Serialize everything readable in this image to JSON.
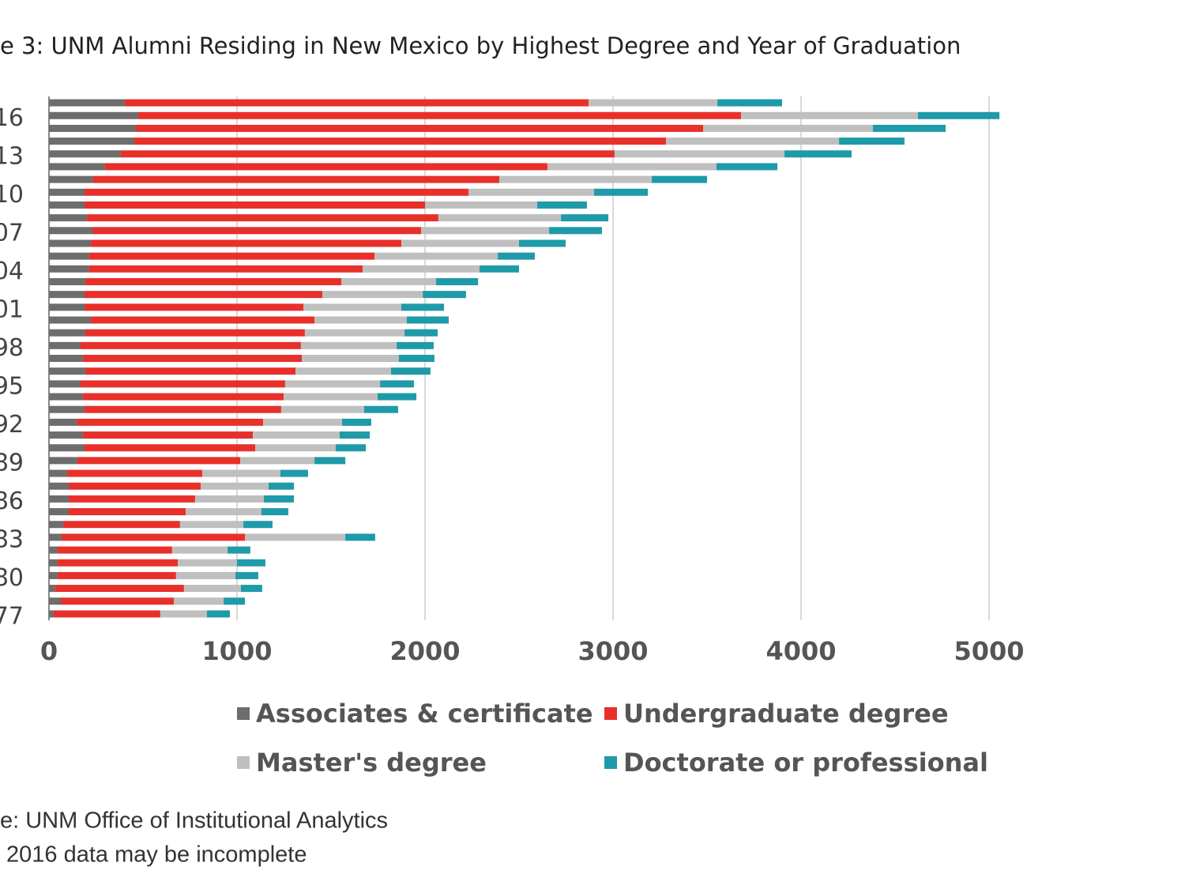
{
  "chart_data": {
    "type": "stacked-bar-horizontal",
    "title": "e 3: UNM Alumni Residing in New Mexico by Highest Degree and Year of Graduation",
    "categories": [
      null,
      "16",
      null,
      null,
      "13",
      null,
      null,
      "10",
      null,
      null,
      "07",
      null,
      null,
      "04",
      null,
      null,
      "01",
      null,
      null,
      "98",
      null,
      null,
      "95",
      null,
      null,
      "92",
      null,
      null,
      "89",
      null,
      null,
      "86",
      null,
      null,
      "83",
      null,
      null,
      "80",
      null,
      null,
      "77"
    ],
    "series": [
      {
        "name": "Associates & certificate",
        "color": "#6d6d6d",
        "values": [
          403,
          475,
          462,
          454,
          382,
          298,
          235,
          189,
          189,
          202,
          231,
          223,
          214,
          214,
          193,
          189,
          189,
          223,
          193,
          168,
          181,
          193,
          168,
          181,
          189,
          151,
          181,
          189,
          151,
          97,
          105,
          105,
          105,
          76,
          67,
          46,
          46,
          46,
          34,
          63,
          25
        ]
      },
      {
        "name": "Undergraduate degree",
        "color": "#e8302a",
        "values": [
          2467,
          3206,
          3017,
          2828,
          2626,
          2353,
          2160,
          2042,
          1811,
          1869,
          1748,
          1651,
          1517,
          1454,
          1362,
          1265,
          1164,
          1189,
          1168,
          1172,
          1164,
          1118,
          1088,
          1067,
          1046,
          988,
          903,
          908,
          866,
          718,
          702,
          672,
          622,
          621,
          975,
          609,
          639,
          630,
          684,
          601,
          567
        ]
      },
      {
        "name": "Master's degree",
        "color": "#bfbfbf",
        "values": [
          685,
          941,
          903,
          920,
          904,
          899,
          811,
          668,
          597,
          652,
          681,
          626,
          656,
          622,
          504,
          534,
          521,
          491,
          530,
          509,
          516,
          508,
          505,
          500,
          441,
          420,
          462,
          428,
          395,
          416,
          361,
          366,
          403,
          337,
          534,
          295,
          315,
          316,
          303,
          265,
          248
        ]
      },
      {
        "name": "Doctorate or professional",
        "color": "#1f9aa8",
        "values": [
          344,
          433,
          387,
          348,
          357,
          324,
          294,
          286,
          264,
          252,
          281,
          248,
          197,
          210,
          223,
          230,
          227,
          223,
          176,
          197,
          189,
          210,
          180,
          206,
          181,
          155,
          160,
          160,
          164,
          147,
          135,
          160,
          143,
          155,
          159,
          121,
          151,
          121,
          113,
          113,
          122
        ]
      }
    ],
    "xlim": [
      0,
      6000
    ],
    "xticks": [
      0,
      1000,
      2000,
      3000,
      4000,
      5000
    ],
    "grid": true,
    "source": "e:  UNM Office of Institutional Analytics",
    "note": "2016 data may be incomplete"
  }
}
